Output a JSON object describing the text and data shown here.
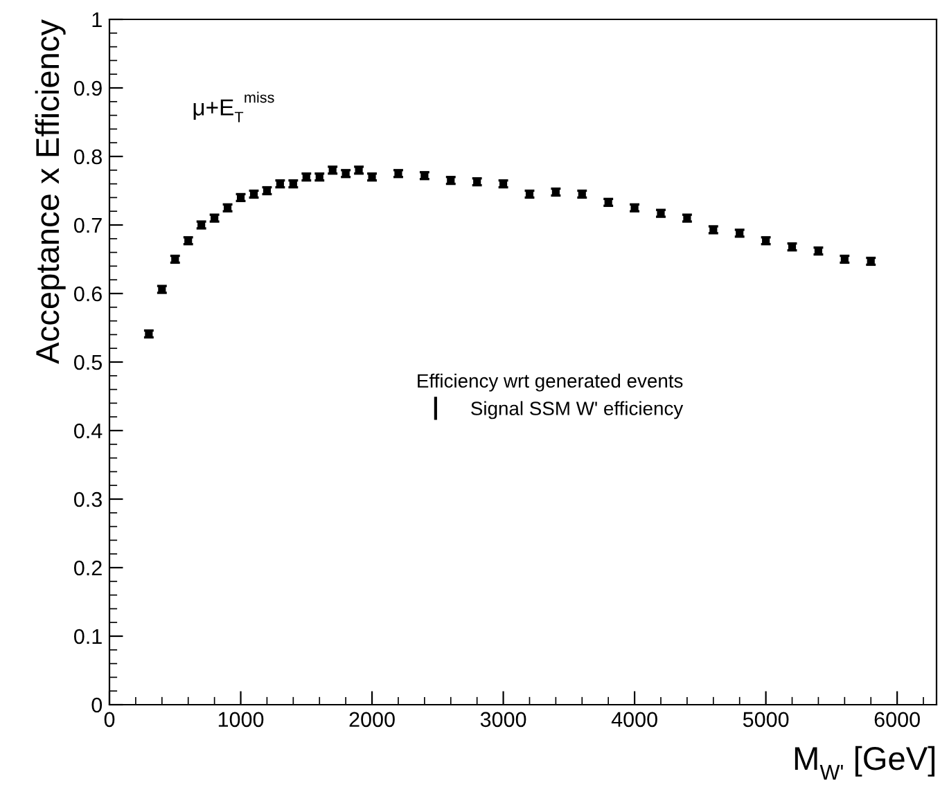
{
  "chart_data": {
    "type": "scatter",
    "xlabel": "M$_{W'}$ [GeV]",
    "ylabel": "Acceptance x Efficiency",
    "legend_title": "Efficiency wrt generated events",
    "annotations": [
      "μ+E$_{T}$$^{miss}$"
    ],
    "xlim": [
      0,
      6300
    ],
    "xticks": [
      0,
      1000,
      2000,
      3000,
      4000,
      5000,
      6000
    ],
    "ylim": [
      0,
      1
    ],
    "yticks": [
      0,
      0.1,
      0.2,
      0.3,
      0.4,
      0.5,
      0.6,
      0.7,
      0.8,
      0.9,
      1
    ],
    "grid": false,
    "legend": "center right",
    "marker": "square",
    "series": [
      {
        "name": "Signal SSM W' efficiency",
        "color": "#000000",
        "x": [
          300,
          400,
          500,
          600,
          700,
          800,
          900,
          1000,
          1100,
          1200,
          1300,
          1400,
          1500,
          1600,
          1700,
          1800,
          1900,
          2000,
          2200,
          2400,
          2600,
          2800,
          3000,
          3200,
          3400,
          3600,
          3800,
          4000,
          4200,
          4400,
          4600,
          4800,
          5000,
          5200,
          5400,
          5600,
          5800
        ],
        "values": [
          0.541,
          0.606,
          0.65,
          0.677,
          0.7,
          0.71,
          0.725,
          0.74,
          0.745,
          0.75,
          0.76,
          0.76,
          0.77,
          0.77,
          0.78,
          0.775,
          0.78,
          0.77,
          0.775,
          0.772,
          0.765,
          0.763,
          0.76,
          0.745,
          0.748,
          0.745,
          0.733,
          0.725,
          0.717,
          0.71,
          0.693,
          0.688,
          0.677,
          0.668,
          0.662,
          0.65,
          0.647
        ],
        "errors": [
          0.005,
          0.005,
          0.005,
          0.005,
          0.005,
          0.005,
          0.005,
          0.005,
          0.005,
          0.005,
          0.005,
          0.005,
          0.005,
          0.005,
          0.005,
          0.005,
          0.005,
          0.005,
          0.005,
          0.005,
          0.005,
          0.005,
          0.005,
          0.005,
          0.005,
          0.005,
          0.005,
          0.005,
          0.005,
          0.005,
          0.005,
          0.005,
          0.005,
          0.005,
          0.005,
          0.005,
          0.005
        ]
      }
    ]
  }
}
